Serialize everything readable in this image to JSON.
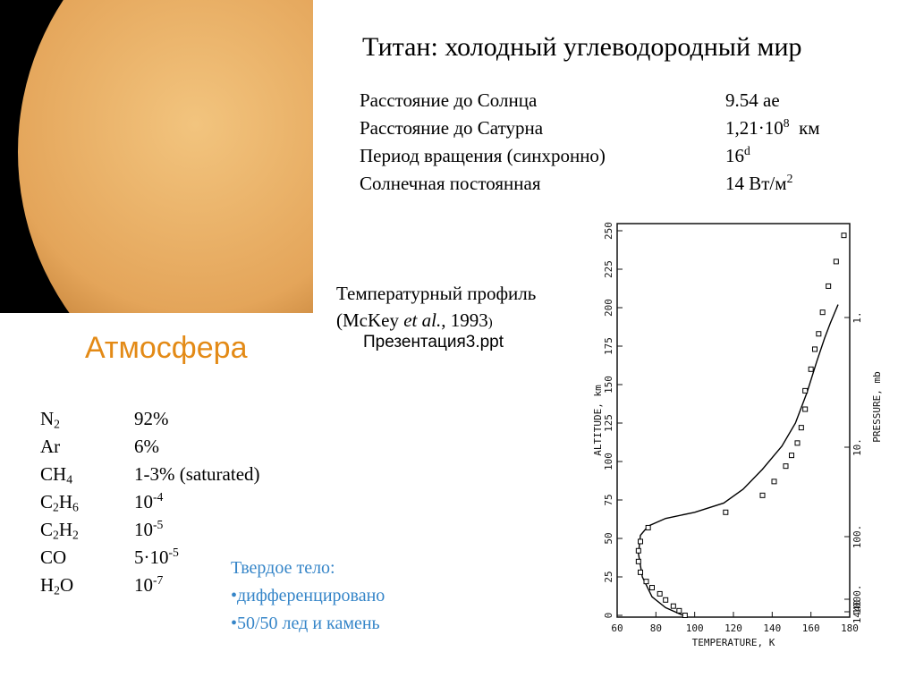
{
  "title": "Титан: холодный углеводородный мир",
  "facts": [
    {
      "label": "Расстояние до Солнца",
      "value": [
        {
          "text": "9.54 ае"
        }
      ]
    },
    {
      "label": "Расстояние до Сатурна",
      "value": [
        {
          "text": "1,21·10"
        },
        {
          "sup": "8"
        },
        {
          "text": "  км"
        }
      ]
    },
    {
      "label": "Период вращения (синхронно)",
      "value": [
        {
          "text": "16"
        },
        {
          "sup": "d"
        }
      ]
    },
    {
      "label": "Солнечная постоянная",
      "value": [
        {
          "text": "14 Вт/м"
        },
        {
          "sup": "2"
        }
      ]
    }
  ],
  "caption": {
    "line1": [
      {
        "text": "Температурный профиль"
      }
    ],
    "line2": [
      {
        "text": "(McKey "
      },
      {
        "i": "et al."
      },
      {
        "text": ", 1993"
      },
      {
        "small": ")"
      }
    ]
  },
  "link": "Презентация3.ppt",
  "atmosphere": {
    "heading": "Атмосфера",
    "rows": [
      {
        "formula": [
          {
            "text": "N"
          },
          {
            "sub": "2"
          }
        ],
        "value": [
          {
            "text": "92%"
          }
        ]
      },
      {
        "formula": [
          {
            "text": "Ar"
          }
        ],
        "value": [
          {
            "text": "6%"
          }
        ]
      },
      {
        "formula": [
          {
            "text": "CH"
          },
          {
            "sub": "4"
          }
        ],
        "value": [
          {
            "text": "1-3% (saturated)"
          }
        ]
      },
      {
        "formula": [
          {
            "text": "C"
          },
          {
            "sub": "2"
          },
          {
            "text": "H"
          },
          {
            "sub": "6"
          }
        ],
        "value": [
          {
            "text": "10"
          },
          {
            "sup": "-4"
          }
        ]
      },
      {
        "formula": [
          {
            "text": "C"
          },
          {
            "sub": "2"
          },
          {
            "text": "H"
          },
          {
            "sub": "2"
          }
        ],
        "value": [
          {
            "text": "10"
          },
          {
            "sup": "-5"
          }
        ]
      },
      {
        "formula": [
          {
            "text": "CO"
          }
        ],
        "value": [
          {
            "text": "5·10"
          },
          {
            "sup": "-5"
          }
        ]
      },
      {
        "formula": [
          {
            "text": "H"
          },
          {
            "sub": "2"
          },
          {
            "text": "O"
          }
        ],
        "value": [
          {
            "text": "10"
          },
          {
            "sup": "-7"
          }
        ]
      }
    ]
  },
  "solid_body": {
    "heading": "Твердое тело:",
    "items": [
      "•дифференцировано",
      "•50/50 лед и камень"
    ]
  },
  "profile_chart": {
    "type": "line",
    "x_label": "TEMPERATURE, K",
    "y_label": "ALTITUDE, km",
    "y2_label": "PRESSURE, mb",
    "xlim": [
      60,
      180
    ],
    "xticks": [
      60,
      80,
      100,
      120,
      140,
      160,
      180
    ],
    "ylim": [
      0,
      250
    ],
    "yticks": [
      0,
      25,
      50,
      75,
      100,
      125,
      150,
      175,
      200,
      225,
      250
    ],
    "y2ticks": [
      {
        "value": 1,
        "label": "1."
      },
      {
        "value": 10,
        "label": "10."
      },
      {
        "value": 100,
        "label": "100."
      },
      {
        "value": 1000,
        "label": "1000."
      },
      1440
    ],
    "series": [
      {
        "type": "line",
        "color": "#000000",
        "x": [
          94,
          85,
          78,
          73,
          71,
          72,
          76,
          85,
          100,
          115,
          125,
          135,
          145,
          152,
          158,
          163,
          167,
          170,
          172,
          174
        ],
        "values": [
          0,
          5,
          12,
          25,
          40,
          52,
          58,
          63,
          67,
          73,
          82,
          95,
          110,
          125,
          145,
          165,
          180,
          190,
          196,
          202
        ]
      },
      {
        "type": "scatter",
        "color": "#000000",
        "x": [
          95,
          92,
          89,
          85,
          82,
          78,
          75,
          72,
          71,
          71,
          72,
          76,
          116,
          135,
          141,
          147,
          150,
          153,
          155,
          157,
          157,
          160,
          162,
          164,
          166,
          169,
          173,
          177
        ],
        "values": [
          0,
          3,
          6,
          10,
          14,
          18,
          22,
          28,
          35,
          42,
          48,
          57,
          67,
          78,
          87,
          97,
          104,
          112,
          122,
          134,
          146,
          160,
          173,
          183,
          197,
          214,
          230,
          247
        ]
      }
    ]
  }
}
